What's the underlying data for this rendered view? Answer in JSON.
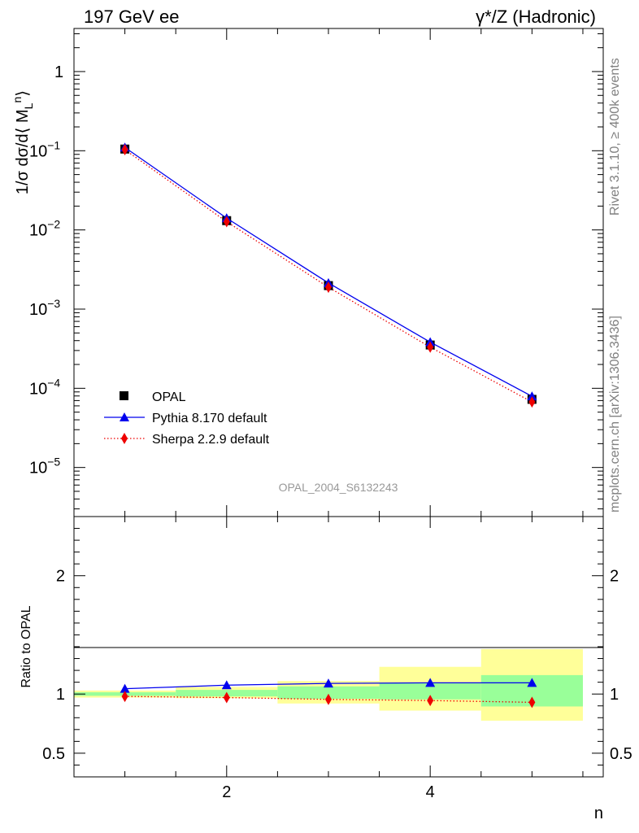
{
  "header": {
    "left_title": "197 GeV ee",
    "right_title": "γ*/Z (Hadronic)"
  },
  "side_text": {
    "rivet": "Rivet 3.1.10, ≥ 400k events",
    "mcplots": "mcplots.cern.ch [arXiv:1306.3436]"
  },
  "analysis_id": "OPAL_2004_S6132243",
  "colors": {
    "opal": "#000000",
    "pythia": "#0000ee",
    "sherpa": "#ee0000",
    "band_inner": "#99ff99",
    "band_outer": "#ffff99"
  },
  "chart_data": [
    {
      "type": "line",
      "panel": "main",
      "ylabel": "1/σ dσ/d⟨ M_L^n⟩",
      "yscale": "log",
      "xlim": [
        0.5,
        5.7
      ],
      "ylim": [
        2.4e-06,
        3.5
      ],
      "yticks": [
        {
          "value": 1,
          "label": "1"
        },
        {
          "value": 0.1,
          "label": "10",
          "exp": "−1"
        },
        {
          "value": 0.01,
          "label": "10",
          "exp": "−2"
        },
        {
          "value": 0.001,
          "label": "10",
          "exp": "−3"
        },
        {
          "value": 0.0001,
          "label": "10",
          "exp": "−4"
        },
        {
          "value": 1e-05,
          "label": "10",
          "exp": "−5"
        }
      ],
      "legend": {
        "placement": "bottom-left",
        "entries": [
          "OPAL",
          "Pythia 8.170 default",
          "Sherpa 2.2.9 default"
        ]
      },
      "series": [
        {
          "name": "OPAL",
          "x": [
            1,
            2,
            3,
            4,
            5
          ],
          "values": [
            0.105,
            0.0131,
            0.00198,
            0.000352,
            7.25e-05
          ],
          "marker": "square"
        },
        {
          "name": "Pythia 8.170 default",
          "x": [
            1,
            2,
            3,
            4,
            5
          ],
          "values": [
            0.11,
            0.0141,
            0.00214,
            0.000383,
            7.92e-05
          ],
          "marker": "triangle",
          "line": "solid"
        },
        {
          "name": "Sherpa 2.2.9 default",
          "x": [
            1,
            2,
            3,
            4,
            5
          ],
          "values": [
            0.103,
            0.0127,
            0.00189,
            0.000331,
            6.72e-05
          ],
          "marker": "diamond",
          "line": "dotted"
        }
      ]
    },
    {
      "type": "line",
      "panel": "ratio",
      "ylabel": "Ratio to OPAL",
      "xlabel": "n",
      "xlim": [
        0.5,
        5.7
      ],
      "ylim": [
        0.3,
        2.5
      ],
      "xticks": [
        {
          "value": 2,
          "label": "2"
        },
        {
          "value": 4,
          "label": "4"
        }
      ],
      "yticks": [
        {
          "value": 0.5,
          "label": "0.5"
        },
        {
          "value": 1,
          "label": "1"
        },
        {
          "value": 2,
          "label": "2"
        }
      ],
      "bands": [
        {
          "x": [
            0.5,
            1.5
          ],
          "inner": [
            0.985,
            1.015
          ],
          "outer": [
            0.97,
            1.03
          ]
        },
        {
          "x": [
            1.5,
            2.5
          ],
          "inner": [
            0.98,
            1.035
          ],
          "outer": [
            0.965,
            1.06
          ]
        },
        {
          "x": [
            2.5,
            3.5
          ],
          "inner": [
            0.96,
            1.065
          ],
          "outer": [
            0.92,
            1.11
          ]
        },
        {
          "x": [
            3.5,
            4.5
          ],
          "inner": [
            0.955,
            1.095
          ],
          "outer": [
            0.86,
            1.23
          ]
        },
        {
          "x": [
            4.5,
            5.5
          ],
          "inner": [
            0.895,
            1.16
          ],
          "outer": [
            0.775,
            1.38
          ]
        }
      ],
      "series": [
        {
          "name": "Pythia 8.170 default",
          "x": [
            1,
            2,
            3,
            4,
            5
          ],
          "values": [
            1.045,
            1.075,
            1.09,
            1.095,
            1.095
          ],
          "marker": "triangle",
          "line": "solid"
        },
        {
          "name": "Sherpa 2.2.9 default",
          "x": [
            1,
            2,
            3,
            4,
            5
          ],
          "values": [
            0.98,
            0.97,
            0.955,
            0.945,
            0.93
          ],
          "marker": "diamond",
          "line": "dotted"
        }
      ]
    }
  ]
}
